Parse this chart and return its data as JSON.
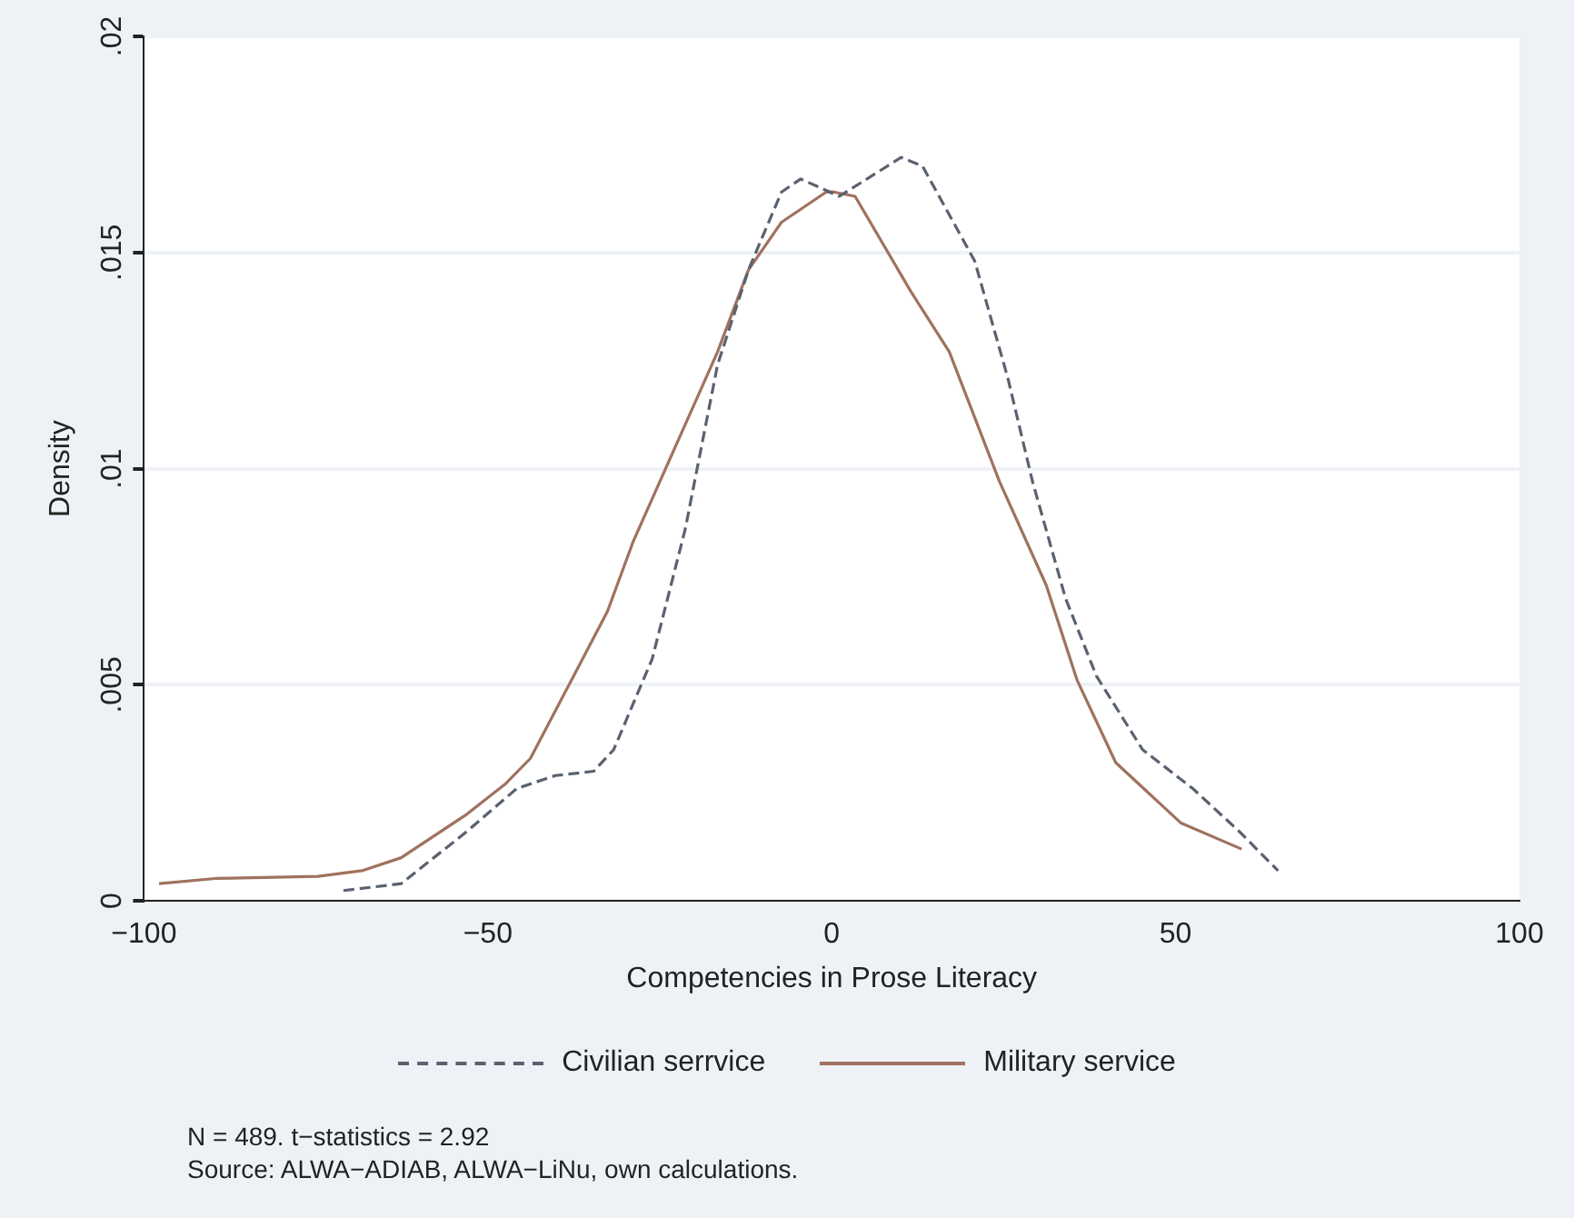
{
  "chart_data": {
    "type": "line",
    "xlabel": "Competencies in Prose Literacy",
    "ylabel": "Density",
    "xlim": [
      -100,
      100
    ],
    "xticks": [
      {
        "value": -100,
        "label": "−100"
      },
      {
        "value": -50,
        "label": "−50"
      },
      0,
      50,
      100
    ],
    "ylim": [
      0,
      0.02
    ],
    "yticks": [
      0,
      {
        "value": 0.005,
        "label": ".005"
      },
      {
        "value": 0.01,
        "label": ".01"
      },
      {
        "value": 0.015,
        "label": ".015"
      },
      {
        "value": 0.02,
        "label": ".02"
      }
    ],
    "grid": "y",
    "legend": "bottom",
    "marker": "none",
    "series": [
      {
        "name": "Civilian serrvice",
        "color": "#5a6270",
        "line_style": "dashed",
        "x": [
          -71,
          -62.6,
          -53.1,
          -45.8,
          -40.2,
          -34.6,
          -31.7,
          -26.1,
          -21.3,
          -16.6,
          -12.1,
          -7.3,
          -4.5,
          1.1,
          10.1,
          13.2,
          20.8,
          25.6,
          29.2,
          34,
          38.5,
          45.2,
          52.5,
          59.3,
          64.9
        ],
        "values": [
          0.00024,
          0.0004,
          0.0016,
          0.0026,
          0.0029,
          0.003,
          0.0035,
          0.0056,
          0.0086,
          0.0124,
          0.0146,
          0.0164,
          0.0167,
          0.0163,
          0.0172,
          0.017,
          0.0148,
          0.0121,
          0.0097,
          0.007,
          0.0052,
          0.0035,
          0.0026,
          0.0016,
          0.0007
        ]
      },
      {
        "name": "Military service",
        "color": "#a0725f",
        "line_style": "solid",
        "x": [
          -97.8,
          -89.6,
          -74.7,
          -68.3,
          -62.6,
          -53.1,
          -47.5,
          -43.8,
          -38.2,
          -32.6,
          -28.9,
          -22.2,
          -16.6,
          -12.1,
          -7.3,
          -0.8,
          0.3,
          3.4,
          11.5,
          17.1,
          24.4,
          31.2,
          35.7,
          41.3,
          50.8,
          59.6
        ],
        "values": [
          0.0004,
          0.00052,
          0.00057,
          0.0007,
          0.001,
          0.002,
          0.0027,
          0.0033,
          0.005,
          0.0067,
          0.0083,
          0.0107,
          0.0127,
          0.0146,
          0.0157,
          0.0164,
          0.0164,
          0.0163,
          0.0141,
          0.0127,
          0.0097,
          0.0073,
          0.0051,
          0.0032,
          0.0018,
          0.0012
        ]
      }
    ],
    "annotations": [
      "N = 489. t−statistics = 2.92",
      "Source: ALWA−ADIAB, ALWA−LiNu, own calculations."
    ]
  }
}
